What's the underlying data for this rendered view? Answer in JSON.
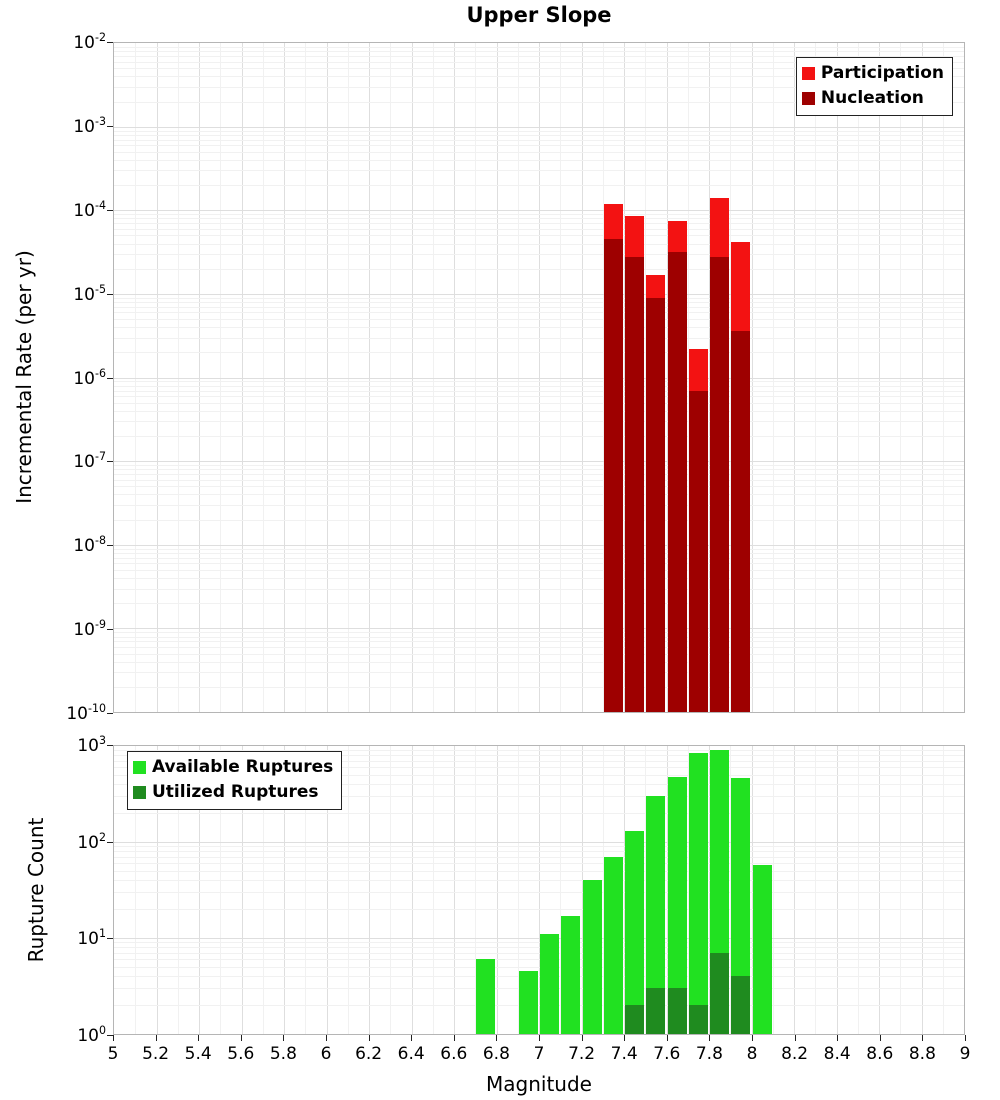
{
  "title": "Upper Slope",
  "x_axis": {
    "label": "Magnitude",
    "min": 5,
    "max": 9,
    "tick_values": [
      5,
      5.2,
      5.4,
      5.6,
      5.8,
      6,
      6.2,
      6.4,
      6.6,
      6.8,
      7,
      7.2,
      7.4,
      7.6,
      7.8,
      8,
      8.2,
      8.4,
      8.6,
      8.8,
      9
    ],
    "tick_labels": [
      "5",
      "5.2",
      "5.4",
      "5.6",
      "5.8",
      "6",
      "6.2",
      "6.4",
      "6.6",
      "6.8",
      "7",
      "7.2",
      "7.4",
      "7.6",
      "7.8",
      "8",
      "8.2",
      "8.4",
      "8.6",
      "8.8",
      "9"
    ]
  },
  "colors": {
    "participation": "#f31212",
    "nucleation": "#9e0000",
    "available": "#21e121",
    "utilized": "#1f8b1f",
    "grid_major": "#dedede",
    "grid_minor": "#f1f1f1",
    "frame": "#b5b5b5",
    "tick": "#222222"
  },
  "chart_data": [
    {
      "type": "bar",
      "panel": "top",
      "title": "Upper Slope",
      "ylabel": "Incremental Rate (per yr)",
      "yscale": "log",
      "ylim_exp": [
        -10,
        -2
      ],
      "ytick_exps": [
        -2,
        -3,
        -4,
        -5,
        -6,
        -7,
        -8,
        -9,
        -10
      ],
      "grid": true,
      "bin_width": 0.1,
      "bar_width": 0.09,
      "legend_position": "top-right",
      "legend": [
        {
          "label": "Participation",
          "color_key": "participation"
        },
        {
          "label": "Nucleation",
          "color_key": "nucleation"
        }
      ],
      "series": [
        {
          "name": "Participation",
          "color_key": "participation",
          "x": [
            7.35,
            7.45,
            7.55,
            7.65,
            7.75,
            7.85,
            7.95
          ],
          "values": [
            0.00012,
            8.5e-05,
            1.7e-05,
            7.5e-05,
            2.2e-06,
            0.00014,
            4.2e-05
          ]
        },
        {
          "name": "Nucleation",
          "color_key": "nucleation",
          "x": [
            7.35,
            7.45,
            7.55,
            7.65,
            7.75,
            7.85,
            7.95
          ],
          "values": [
            4.5e-05,
            2.8e-05,
            9e-06,
            3.2e-05,
            7e-07,
            2.8e-05,
            3.6e-06
          ]
        }
      ]
    },
    {
      "type": "bar",
      "panel": "bottom",
      "ylabel": "Rupture Count",
      "yscale": "log",
      "ylim_exp": [
        0,
        3
      ],
      "ytick_exps": [
        3,
        2,
        1,
        0
      ],
      "grid": true,
      "bin_width": 0.1,
      "bar_width": 0.09,
      "legend_position": "top-left",
      "legend": [
        {
          "label": "Available Ruptures",
          "color_key": "available"
        },
        {
          "label": "Utilized Ruptures",
          "color_key": "utilized"
        }
      ],
      "series": [
        {
          "name": "Available Ruptures",
          "color_key": "available",
          "x": [
            6.75,
            6.95,
            7.05,
            7.15,
            7.25,
            7.35,
            7.45,
            7.55,
            7.65,
            7.75,
            7.85,
            7.95,
            8.05
          ],
          "values": [
            6,
            4.5,
            11,
            17,
            40,
            70,
            130,
            300,
            480,
            850,
            900,
            470,
            57
          ]
        },
        {
          "name": "Utilized Ruptures",
          "color_key": "utilized",
          "x": [
            7.45,
            7.55,
            7.65,
            7.75,
            7.85,
            7.95
          ],
          "values": [
            2,
            3,
            3,
            2,
            7,
            4
          ]
        }
      ]
    }
  ]
}
